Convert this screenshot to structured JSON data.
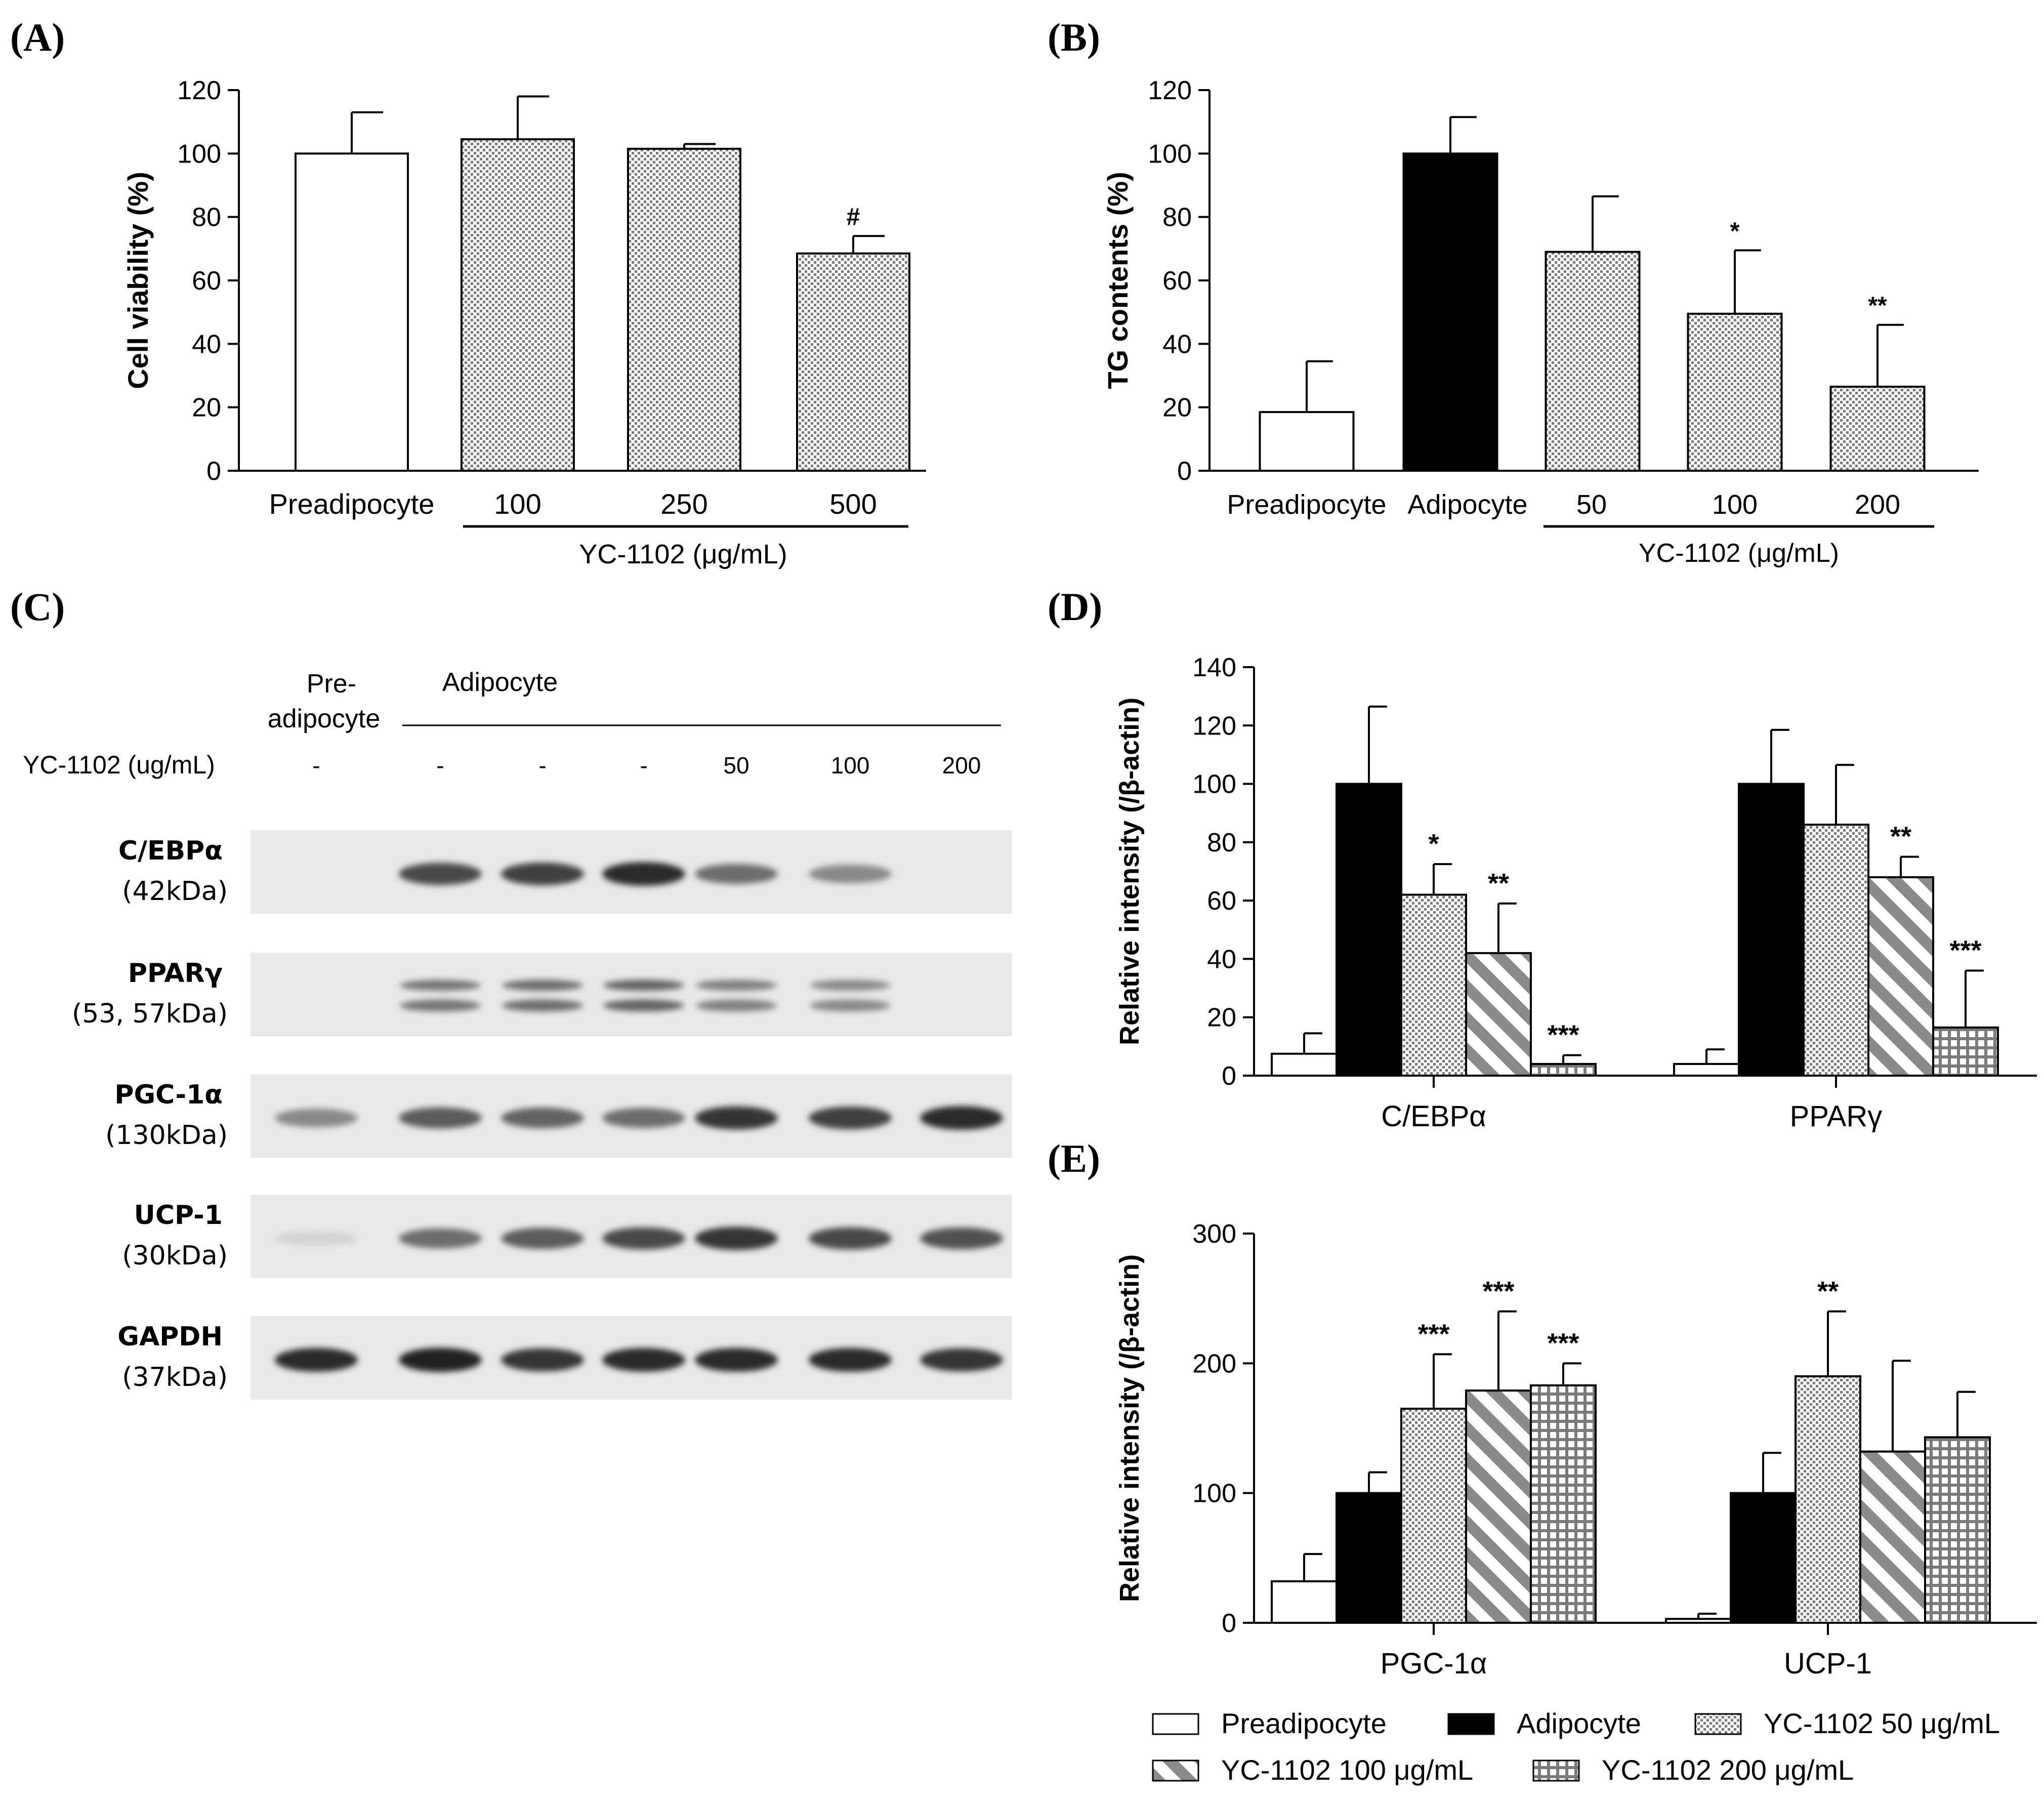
{
  "colors": {
    "white": "#ffffff",
    "black": "#000000",
    "pattern_fg": "#707070",
    "blot_bg": "#e8e8e8",
    "band": "#3a3a3a"
  },
  "panel_labels": {
    "a": "(A)",
    "b": "(B)",
    "c": "(C)",
    "d": "(D)",
    "e": "(E)"
  },
  "chart_data": [
    {
      "id": "A",
      "type": "bar",
      "ylabel": "Cell viability (%)",
      "ylim": [
        0,
        120
      ],
      "yticks": [
        0,
        20,
        40,
        60,
        80,
        100,
        120
      ],
      "yticklabels": [
        "0",
        "20",
        "40",
        "60",
        "80",
        "100",
        "120"
      ],
      "categories": [
        "Preadipocyte",
        "100",
        "250",
        "500"
      ],
      "values": [
        100,
        104.5,
        101.5,
        68.5
      ],
      "errors": [
        13,
        13.5,
        1.5,
        5.5
      ],
      "fills": [
        "Preadipocyte",
        "YC-1102 50 μg/mL",
        "YC-1102 50 μg/mL",
        "YC-1102 50 μg/mL"
      ],
      "annotations": [
        "",
        "",
        "",
        "#"
      ],
      "group_label": "YC-1102 (μg/mL)"
    },
    {
      "id": "B",
      "type": "bar",
      "ylabel": "TG contents (%)",
      "ylim": [
        0,
        120
      ],
      "yticks": [
        0,
        20,
        40,
        60,
        80,
        100,
        120
      ],
      "yticklabels": [
        "0",
        "20",
        "40",
        "60",
        "80",
        "100",
        "120"
      ],
      "categories": [
        "Preadipocyte",
        "Adipocyte",
        "50",
        "100",
        "200"
      ],
      "values": [
        18.5,
        100,
        69,
        49.5,
        26.5
      ],
      "errors": [
        16,
        11.5,
        17.5,
        20,
        19.5
      ],
      "fills": [
        "Preadipocyte",
        "Adipocyte",
        "YC-1102 50 μg/mL",
        "YC-1102 50 μg/mL",
        "YC-1102 50 μg/mL"
      ],
      "annotations": [
        "",
        "",
        "",
        "*",
        "**"
      ],
      "group_label": "YC-1102 (μg/mL)"
    },
    {
      "id": "D",
      "type": "bar",
      "ylabel": "Relative intensity (/β-actin)",
      "ylim": [
        0,
        140
      ],
      "yticks": [
        0,
        20,
        40,
        60,
        80,
        100,
        120,
        140
      ],
      "yticklabels": [
        "0",
        "20",
        "40",
        "60",
        "80",
        "100",
        "120",
        "140"
      ],
      "categories": [
        "C/EBPα",
        "PPARγ"
      ],
      "series": [
        {
          "name": "Preadipocyte",
          "values": [
            7.5,
            4
          ],
          "errors": [
            7,
            5
          ],
          "annotations": [
            "",
            ""
          ]
        },
        {
          "name": "Adipocyte",
          "values": [
            100,
            100
          ],
          "errors": [
            26.5,
            18.5
          ],
          "annotations": [
            "",
            ""
          ]
        },
        {
          "name": "YC-1102 50 μg/mL",
          "values": [
            62,
            86
          ],
          "errors": [
            10.5,
            20.5
          ],
          "annotations": [
            "*",
            ""
          ]
        },
        {
          "name": "YC-1102 100 μg/mL",
          "values": [
            42,
            68
          ],
          "errors": [
            17,
            7
          ],
          "annotations": [
            "**",
            "**"
          ]
        },
        {
          "name": "YC-1102 200 μg/mL",
          "values": [
            4,
            16.5
          ],
          "errors": [
            3,
            19.5
          ],
          "annotations": [
            "***",
            "***"
          ]
        }
      ]
    },
    {
      "id": "E",
      "type": "bar",
      "ylabel": "Relative intensity (/β-actin)",
      "ylim": [
        0,
        300
      ],
      "yticks": [
        0,
        100,
        200,
        300
      ],
      "yticklabels": [
        "0",
        "100",
        "200",
        "300"
      ],
      "categories": [
        "PGC-1α",
        "UCP-1"
      ],
      "series": [
        {
          "name": "Preadipocyte",
          "values": [
            32,
            3
          ],
          "errors": [
            21,
            4
          ],
          "annotations": [
            "",
            ""
          ]
        },
        {
          "name": "Adipocyte",
          "values": [
            100,
            100
          ],
          "errors": [
            16,
            31
          ],
          "annotations": [
            "",
            ""
          ]
        },
        {
          "name": "YC-1102 50 μg/mL",
          "values": [
            165,
            190
          ],
          "errors": [
            42,
            50
          ],
          "annotations": [
            "***",
            "**"
          ]
        },
        {
          "name": "YC-1102 100 μg/mL",
          "values": [
            179,
            132
          ],
          "errors": [
            61,
            70
          ],
          "annotations": [
            "***",
            ""
          ]
        },
        {
          "name": "YC-1102 200 μg/mL",
          "values": [
            183,
            143
          ],
          "errors": [
            17,
            35
          ],
          "annotations": [
            "***",
            ""
          ]
        }
      ]
    }
  ],
  "legend": {
    "items": [
      "Preadipocyte",
      "Adipocyte",
      "YC-1102 50 μg/mL",
      "YC-1102 100 μg/mL",
      "YC-1102 200 μg/mL"
    ]
  },
  "blot": {
    "header": {
      "pre": "Pre-",
      "pre2": "adipocyte",
      "adip": "Adipocyte",
      "treatment": "YC-1102 (ug/mL)"
    },
    "doses": [
      "-",
      "-",
      "-",
      "-",
      "50",
      "100",
      "200"
    ],
    "rows": [
      {
        "name": "C/EBPα",
        "kda": "(42kDa)",
        "lanes": [
          0,
          0.8,
          0.85,
          0.95,
          0.6,
          0.45,
          0
        ],
        "double": false
      },
      {
        "name": "PPARγ",
        "kda": "(53, 57kDa)",
        "lanes": [
          0,
          0.55,
          0.6,
          0.65,
          0.5,
          0.45,
          0
        ],
        "double": true
      },
      {
        "name": "PGC-1α",
        "kda": "(130kDa)",
        "lanes": [
          0.45,
          0.7,
          0.65,
          0.6,
          0.9,
          0.85,
          0.95
        ],
        "double": false
      },
      {
        "name": "UCP-1",
        "kda": "(30kDa)",
        "lanes": [
          0.05,
          0.6,
          0.7,
          0.8,
          0.9,
          0.8,
          0.75
        ],
        "double": false
      },
      {
        "name": "GAPDH",
        "kda": "(37kDa)",
        "lanes": [
          0.95,
          1,
          0.9,
          0.95,
          0.95,
          0.95,
          0.9
        ],
        "double": false
      }
    ]
  }
}
